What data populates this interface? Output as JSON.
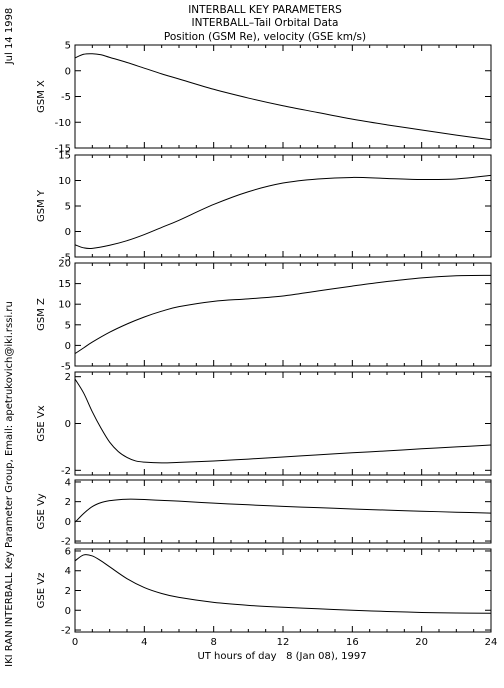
{
  "header": {
    "title_lines": [
      "INTERBALL KEY PARAMETERS",
      "INTERBALL–Tail Orbital Data",
      "Position (GSM Re), velocity (GSE km/s)"
    ],
    "date_label": "Jul 14 1998",
    "credit": "IKI RAN INTERBALL Key Parameter Group, Email: apetrukovich@iki.rssi.ru"
  },
  "chart_data": {
    "type": "line",
    "xlabel": "UT hours of day   8 (Jan 08), 1997",
    "xlim": [
      0,
      24
    ],
    "xticks": [
      0,
      4,
      8,
      12,
      16,
      20,
      24
    ],
    "grid": false,
    "panels": [
      {
        "ylabel": "GSM X",
        "ylim": [
          -15,
          5
        ],
        "yticks": [
          5,
          0,
          -5,
          -10,
          -15
        ],
        "x": [
          0,
          0.5,
          1,
          1.5,
          2,
          3,
          4,
          5,
          6,
          8,
          10,
          12,
          14,
          16,
          18,
          20,
          22,
          24
        ],
        "y": [
          2.5,
          3.2,
          3.3,
          3.1,
          2.6,
          1.6,
          0.5,
          -0.6,
          -1.6,
          -3.6,
          -5.3,
          -6.8,
          -8.1,
          -9.4,
          -10.5,
          -11.5,
          -12.5,
          -13.4
        ]
      },
      {
        "ylabel": "GSM Y",
        "ylim": [
          -5,
          15
        ],
        "yticks": [
          15,
          10,
          5,
          0,
          -5
        ],
        "x": [
          0,
          0.5,
          1,
          2,
          3,
          4,
          5,
          6,
          8,
          10,
          12,
          14,
          16,
          18,
          20,
          22,
          24
        ],
        "y": [
          -2.6,
          -3.2,
          -3.3,
          -2.7,
          -1.8,
          -0.6,
          0.8,
          2.2,
          5.3,
          7.8,
          9.5,
          10.3,
          10.6,
          10.4,
          10.2,
          10.3,
          11.0
        ]
      },
      {
        "ylabel": "GSM Z",
        "ylim": [
          -5,
          20
        ],
        "yticks": [
          20,
          15,
          10,
          5,
          0,
          -5
        ],
        "x": [
          0,
          0.5,
          1,
          2,
          3,
          4,
          5,
          6,
          8,
          10,
          12,
          14,
          16,
          18,
          20,
          22,
          24
        ],
        "y": [
          -2.0,
          -0.6,
          0.8,
          3.2,
          5.2,
          6.9,
          8.3,
          9.4,
          10.7,
          11.3,
          12.0,
          13.2,
          14.4,
          15.5,
          16.4,
          16.9,
          17.0
        ]
      },
      {
        "ylabel": "GSE Vx",
        "ylim": [
          -2.2,
          2.2
        ],
        "yticks": [
          2,
          0,
          -2
        ],
        "x": [
          0,
          0.5,
          1,
          1.5,
          2,
          2.5,
          3,
          3.5,
          4,
          5,
          6,
          8,
          10,
          12,
          14,
          16,
          18,
          20,
          22,
          24
        ],
        "y": [
          1.9,
          1.3,
          0.5,
          -0.2,
          -0.8,
          -1.2,
          -1.45,
          -1.6,
          -1.65,
          -1.68,
          -1.66,
          -1.6,
          -1.52,
          -1.43,
          -1.34,
          -1.25,
          -1.17,
          -1.08,
          -1.0,
          -0.92
        ]
      },
      {
        "ylabel": "GSE Vy",
        "ylim": [
          -2.2,
          4.2
        ],
        "yticks": [
          4,
          2,
          0,
          -2
        ],
        "x": [
          0,
          0.5,
          1,
          1.5,
          2,
          2.5,
          3,
          3.5,
          4,
          5,
          6,
          8,
          10,
          12,
          14,
          16,
          18,
          20,
          22,
          24
        ],
        "y": [
          -0.1,
          0.8,
          1.5,
          1.9,
          2.1,
          2.2,
          2.25,
          2.25,
          2.22,
          2.13,
          2.05,
          1.85,
          1.68,
          1.52,
          1.39,
          1.26,
          1.14,
          1.03,
          0.93,
          0.83
        ]
      },
      {
        "ylabel": "GSE Vz",
        "ylim": [
          -2.2,
          6.2
        ],
        "yticks": [
          6,
          4,
          2,
          0,
          -2
        ],
        "x": [
          0,
          0.5,
          1,
          1.5,
          2,
          3,
          4,
          5,
          6,
          8,
          10,
          12,
          14,
          16,
          18,
          20,
          22,
          24
        ],
        "y": [
          5.0,
          5.6,
          5.5,
          5.0,
          4.4,
          3.2,
          2.3,
          1.7,
          1.3,
          0.8,
          0.5,
          0.3,
          0.15,
          0.0,
          -0.12,
          -0.22,
          -0.28,
          -0.3
        ]
      }
    ]
  }
}
